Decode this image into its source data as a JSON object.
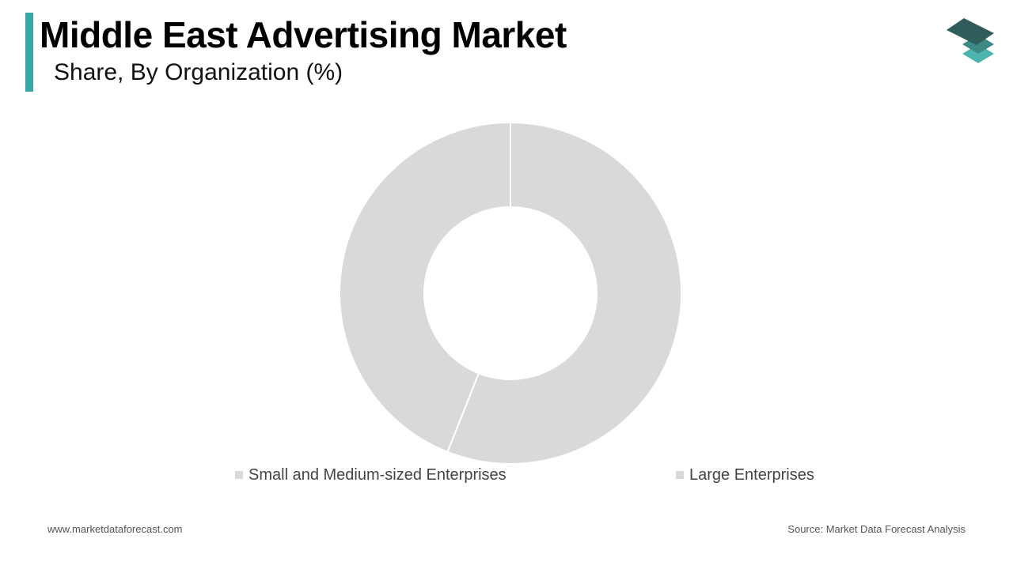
{
  "header": {
    "title": "Middle East Advertising Market",
    "subtitle": "Share, By Organization (%)"
  },
  "colors": {
    "accent": "#3aa6a6",
    "slice_fill": "#d9d9d9",
    "slice_border": "#ffffff",
    "logo_top": "#2f5e5a",
    "logo_mid": "#3d8a84",
    "logo_bottom": "#4db3ae"
  },
  "logo_icon": "stacked-layers-icon",
  "chart_data": {
    "type": "pie",
    "categories": [
      "Large Enterprises",
      "Small and Medium-sized Enterprises"
    ],
    "values": [
      56,
      44
    ],
    "title": "Share, By Organization (%)",
    "legend_position": "bottom"
  },
  "legend": {
    "items": [
      {
        "label": "Small and Medium-sized Enterprises",
        "color": "#d9d9d9"
      },
      {
        "label": "Large Enterprises",
        "color": "#d9d9d9"
      }
    ]
  },
  "footer": {
    "website": "www.marketdataforecast.com",
    "source": "Source: Market Data Forecast Analysis"
  }
}
